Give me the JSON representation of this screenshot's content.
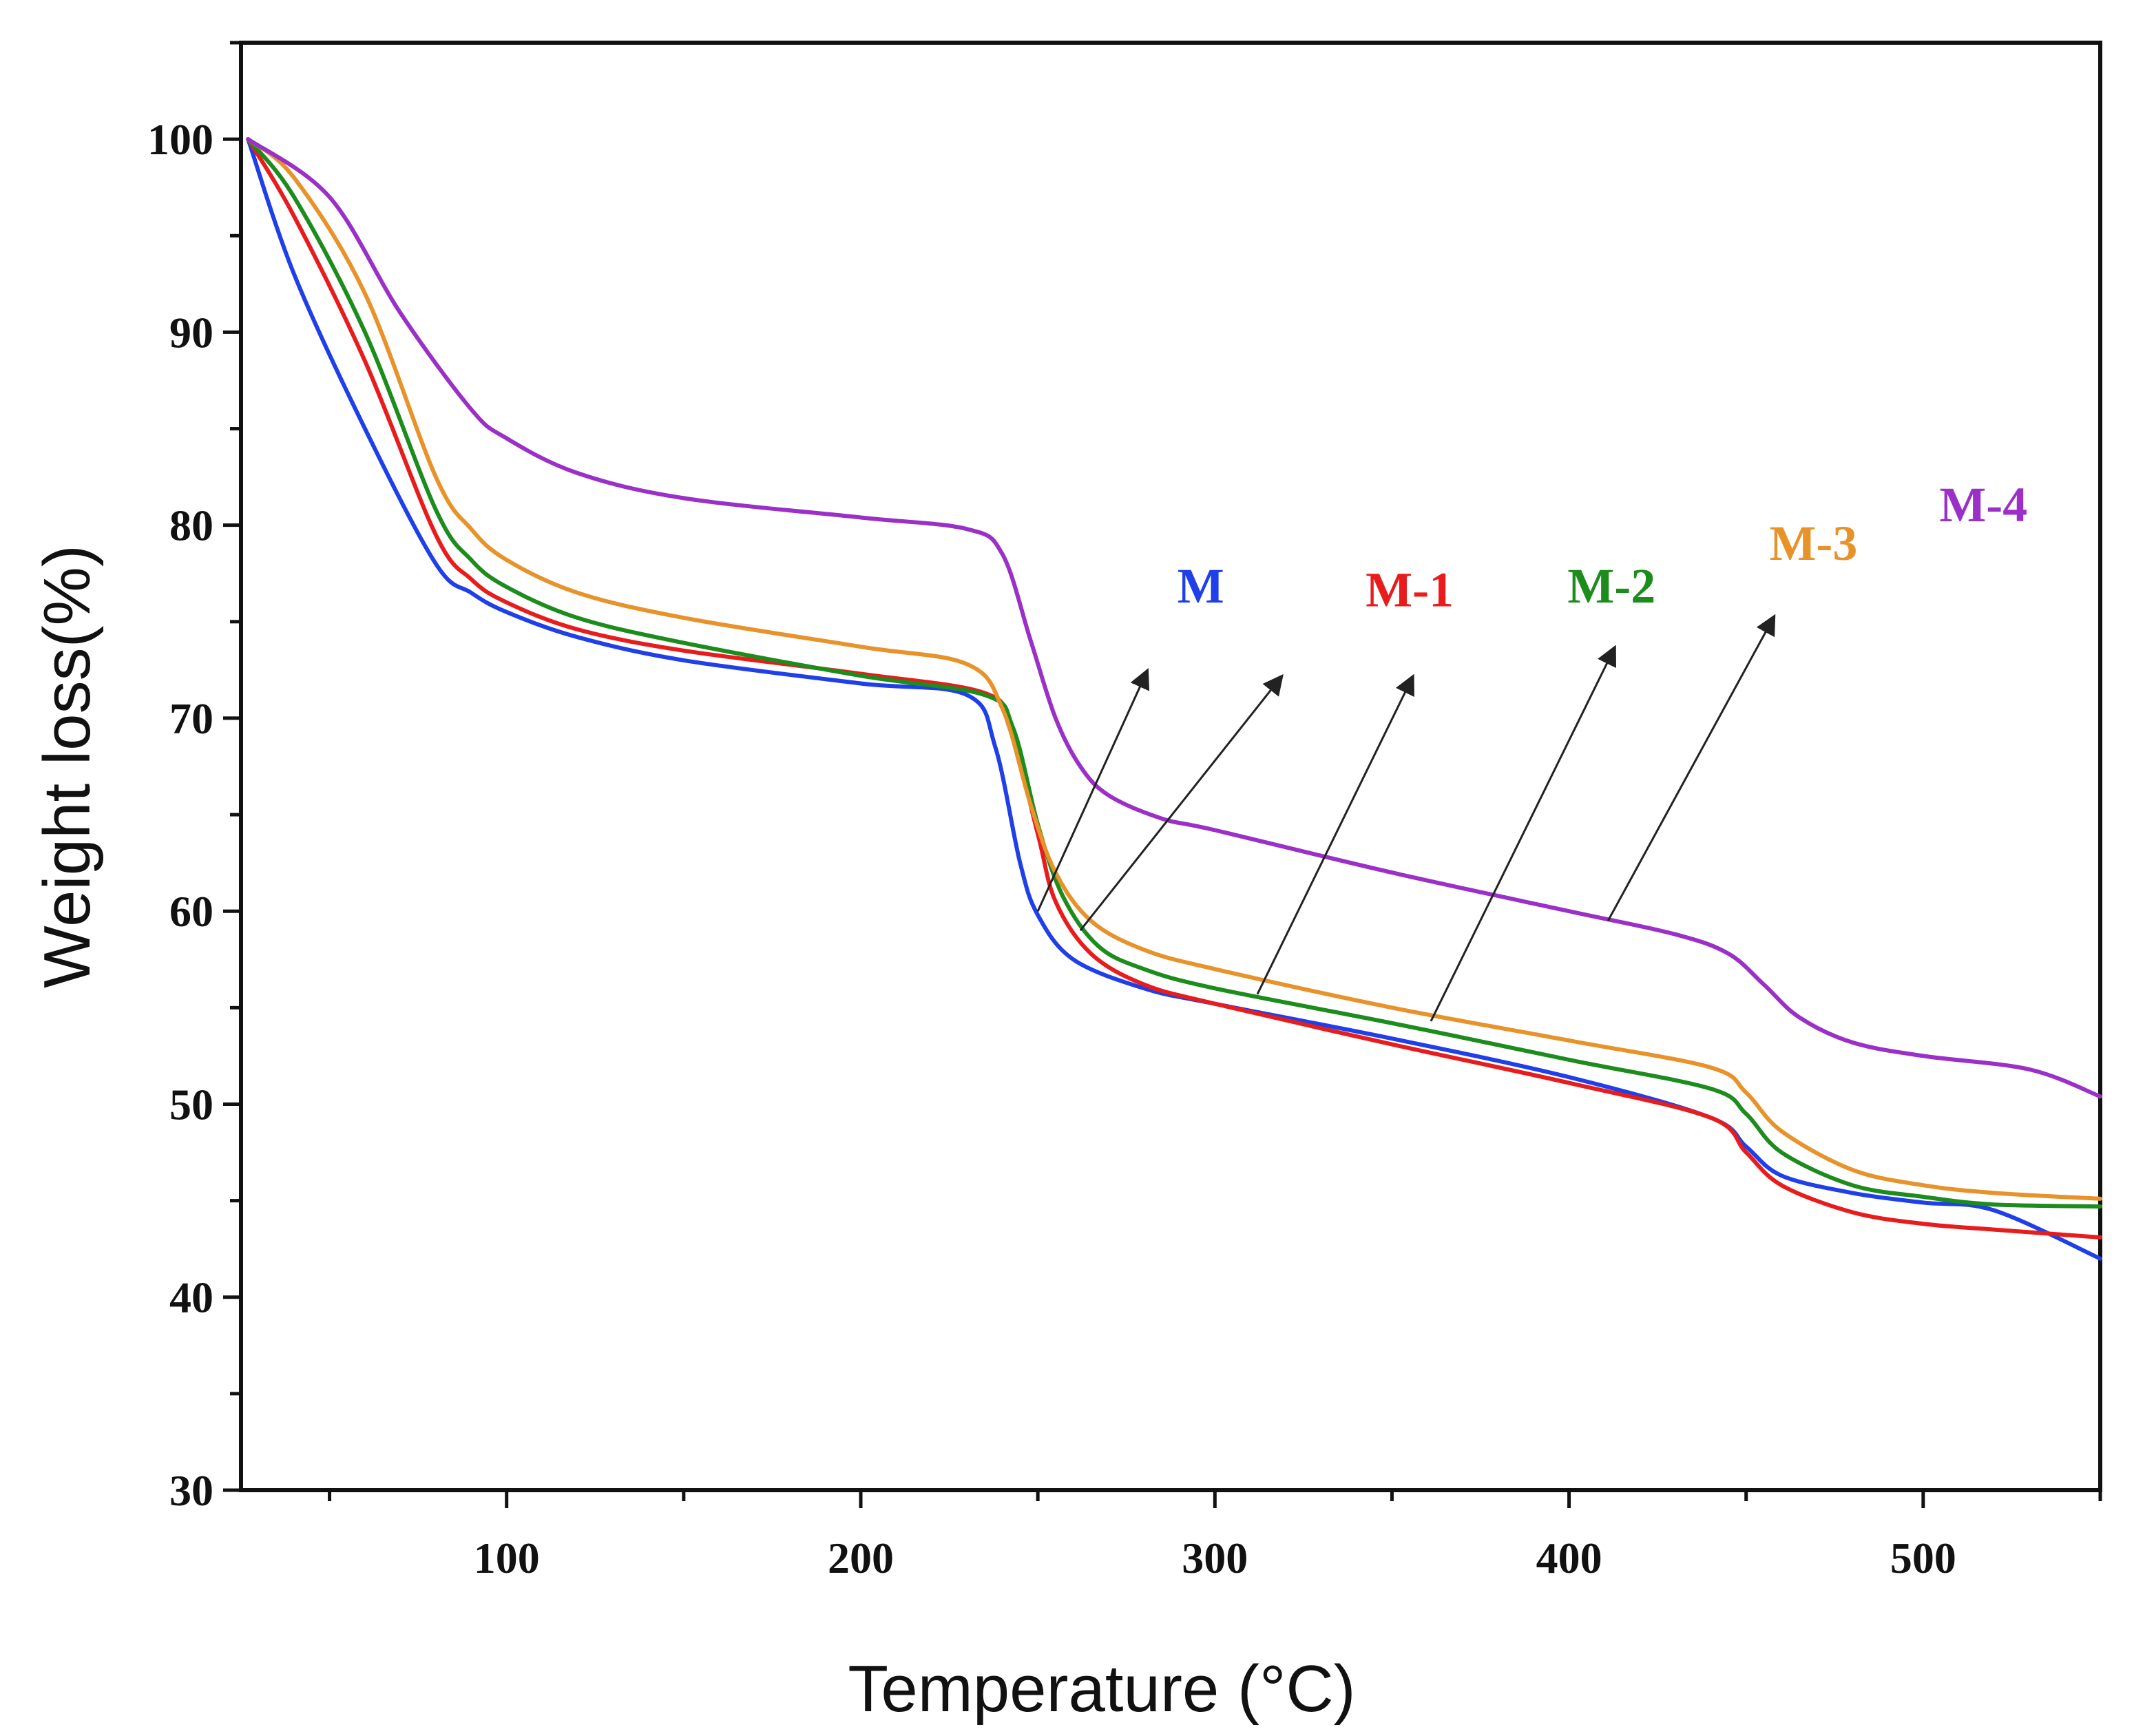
{
  "chart_data": {
    "type": "line",
    "title": "",
    "xlabel": "Temperature (°C)",
    "ylabel": "Weight loss(%)",
    "xlim": [
      25,
      550
    ],
    "ylim": [
      30,
      105
    ],
    "xticks": [
      100,
      200,
      300,
      400,
      500
    ],
    "xticks_minor": [
      50,
      150,
      250,
      350,
      450,
      550
    ],
    "yticks": [
      30,
      40,
      50,
      60,
      70,
      80,
      90,
      100
    ],
    "yticks_minor": [
      35,
      45,
      55,
      65,
      75,
      85,
      95,
      105
    ],
    "grid": false,
    "series": [
      {
        "name": "M",
        "color": "#1f3fe8",
        "x": [
          27,
          40,
          60,
          80,
          90,
          100,
          120,
          150,
          200,
          230,
          238,
          245,
          250,
          260,
          280,
          300,
          350,
          400,
          440,
          450,
          460,
          480,
          500,
          520,
          550
        ],
        "values": [
          100,
          93,
          85,
          78,
          76.5,
          75.5,
          74.2,
          73,
          71.8,
          71.2,
          68.5,
          62.5,
          59.8,
          57.5,
          56,
          55.2,
          53.4,
          51.4,
          49.3,
          47.8,
          46.3,
          45.4,
          44.9,
          44.5,
          42
        ]
      },
      {
        "name": "M-1",
        "color": "#e81c1c",
        "x": [
          27,
          40,
          60,
          80,
          90,
          100,
          120,
          150,
          200,
          235,
          242,
          250,
          255,
          265,
          280,
          300,
          350,
          400,
          440,
          450,
          460,
          480,
          500,
          520,
          550
        ],
        "values": [
          100,
          96,
          88.5,
          79.5,
          77.2,
          76,
          74.6,
          73.5,
          72.3,
          71.3,
          69.5,
          64,
          60.5,
          57.8,
          56.2,
          55.2,
          53.1,
          51.1,
          49.3,
          47.5,
          45.8,
          44.4,
          43.8,
          43.5,
          43.1
        ]
      },
      {
        "name": "M-2",
        "color": "#1c8c1c",
        "x": [
          27,
          40,
          60,
          80,
          90,
          100,
          120,
          150,
          200,
          235,
          243,
          250,
          257,
          267,
          280,
          300,
          350,
          400,
          440,
          450,
          460,
          480,
          500,
          520,
          550
        ],
        "values": [
          100,
          97,
          90,
          80.8,
          78.2,
          76.8,
          75.2,
          73.9,
          72.2,
          71.2,
          69.5,
          64.5,
          60.8,
          58.2,
          57,
          56,
          54.2,
          52.3,
          50.8,
          49.5,
          47.5,
          45.8,
          45.2,
          44.8,
          44.7
        ]
      },
      {
        "name": "M-3",
        "color": "#e8922a",
        "x": [
          27,
          40,
          60,
          80,
          90,
          100,
          120,
          150,
          200,
          230,
          240,
          248,
          255,
          265,
          280,
          300,
          350,
          400,
          440,
          450,
          460,
          480,
          500,
          520,
          550
        ],
        "values": [
          100,
          98,
          92,
          82.5,
          79.8,
          78.2,
          76.5,
          75.2,
          73.7,
          72.8,
          70.5,
          65.5,
          62,
          59.5,
          58,
          57,
          55,
          53.3,
          51.9,
          50.6,
          48.6,
          46.6,
          45.8,
          45.4,
          45.1
        ]
      },
      {
        "name": "M-4",
        "color": "#9b30c8",
        "x": [
          27,
          50,
          70,
          90,
          100,
          120,
          150,
          200,
          230,
          240,
          248,
          255,
          262,
          270,
          285,
          300,
          350,
          400,
          430,
          445,
          455,
          465,
          480,
          500,
          530,
          550
        ],
        "values": [
          100,
          97,
          91,
          86,
          84.5,
          82.7,
          81.4,
          80.4,
          79.8,
          78.5,
          74,
          70,
          67.5,
          66,
          64.8,
          64.2,
          62,
          60,
          58.8,
          57.8,
          56.2,
          54.5,
          53.2,
          52.5,
          51.8,
          50.4
        ]
      }
    ],
    "annotations": [
      {
        "text": "M",
        "series": "M",
        "color": "#1f3fe8",
        "label_at": [
          296,
          76
        ],
        "arrow_from": [
          250,
          60
        ],
        "arrow_to": [
          281,
          72.5
        ]
      },
      {
        "text": "M-1",
        "series": "M-1",
        "color": "#e81c1c",
        "label_at": [
          355,
          75.8
        ],
        "arrow_from": [
          262,
          59
        ],
        "arrow_to": [
          319,
          72.2
        ]
      },
      {
        "text": "M-2",
        "series": "M-2",
        "color": "#1c8c1c",
        "label_at": [
          412,
          76
        ],
        "arrow_from": [
          312,
          55.7
        ],
        "arrow_to": [
          356,
          72.2
        ]
      },
      {
        "text": "M-3",
        "series": "M-3",
        "color": "#e8922a",
        "label_at": [
          469,
          78.2
        ],
        "arrow_from": [
          361,
          54.3
        ],
        "arrow_to": [
          413,
          73.7
        ]
      },
      {
        "text": "M-4",
        "series": "M-4",
        "color": "#9b30c8",
        "label_at": [
          517,
          80.2
        ],
        "arrow_from": [
          411,
          59.5
        ],
        "arrow_to": [
          458,
          75.3
        ]
      }
    ]
  }
}
